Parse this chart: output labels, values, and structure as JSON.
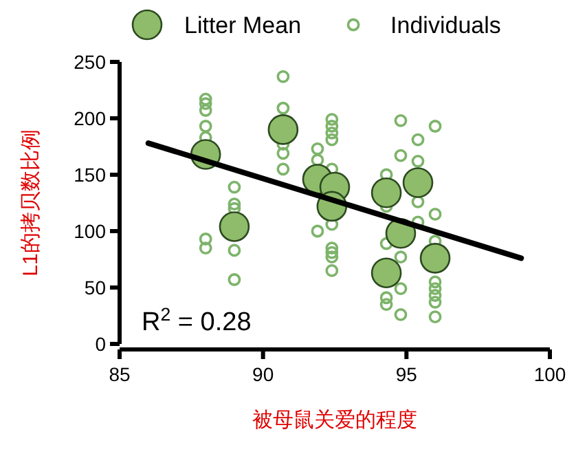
{
  "chart_data": {
    "type": "scatter",
    "xlabel": "被母鼠关爱的程度",
    "ylabel": "L1的拷贝数比例",
    "xlim": [
      85,
      100
    ],
    "ylim": [
      0,
      250
    ],
    "xticks": [
      85,
      90,
      95,
      100
    ],
    "yticks": [
      0,
      50,
      100,
      150,
      200,
      250
    ],
    "legend": "top",
    "grid": false,
    "marker": "circle",
    "annotations": [
      "R$^{2}$ = 0.28"
    ],
    "series": [
      {
        "name": "Individuals",
        "color": "#7db46a",
        "x": [
          88,
          88,
          88,
          88,
          88,
          88,
          88,
          89,
          89,
          89,
          89,
          89,
          90.7,
          90.7,
          90.7,
          90.7,
          90.7,
          91.9,
          91.9,
          91.9,
          92.4,
          92.4,
          92.4,
          92.4,
          92.4,
          92.4,
          92.4,
          92.4,
          92.4,
          92.4,
          94.3,
          94.3,
          94.3,
          94.3,
          94.3,
          94.8,
          94.8,
          94.8,
          94.8,
          94.8,
          95.4,
          95.4,
          95.4,
          95.4,
          96,
          96,
          96,
          96,
          96,
          96,
          96,
          96
        ],
        "values": [
          217,
          213,
          207,
          193,
          183,
          93,
          85,
          139,
          124,
          120,
          83,
          57,
          237,
          209,
          177,
          169,
          155,
          173,
          163,
          100,
          199,
          193,
          187,
          181,
          155,
          106,
          85,
          81,
          77,
          65,
          150,
          122,
          89,
          41,
          35,
          198,
          167,
          77,
          49,
          26,
          181,
          162,
          126,
          108,
          193,
          115,
          91,
          55,
          49,
          43,
          37,
          24
        ]
      },
      {
        "name": "Litter Mean",
        "color": "#8fbc6a",
        "x": [
          88,
          89,
          90.7,
          91.9,
          92.5,
          92.4,
          94.3,
          95.4,
          94.8,
          94.3,
          96
        ],
        "values": [
          168,
          104,
          190,
          146,
          139,
          122,
          134,
          143,
          98,
          63,
          76
        ]
      },
      {
        "type": "line",
        "marker": "none",
        "color": "#000000",
        "x": [
          86,
          99
        ],
        "values": [
          178,
          76
        ]
      }
    ]
  }
}
